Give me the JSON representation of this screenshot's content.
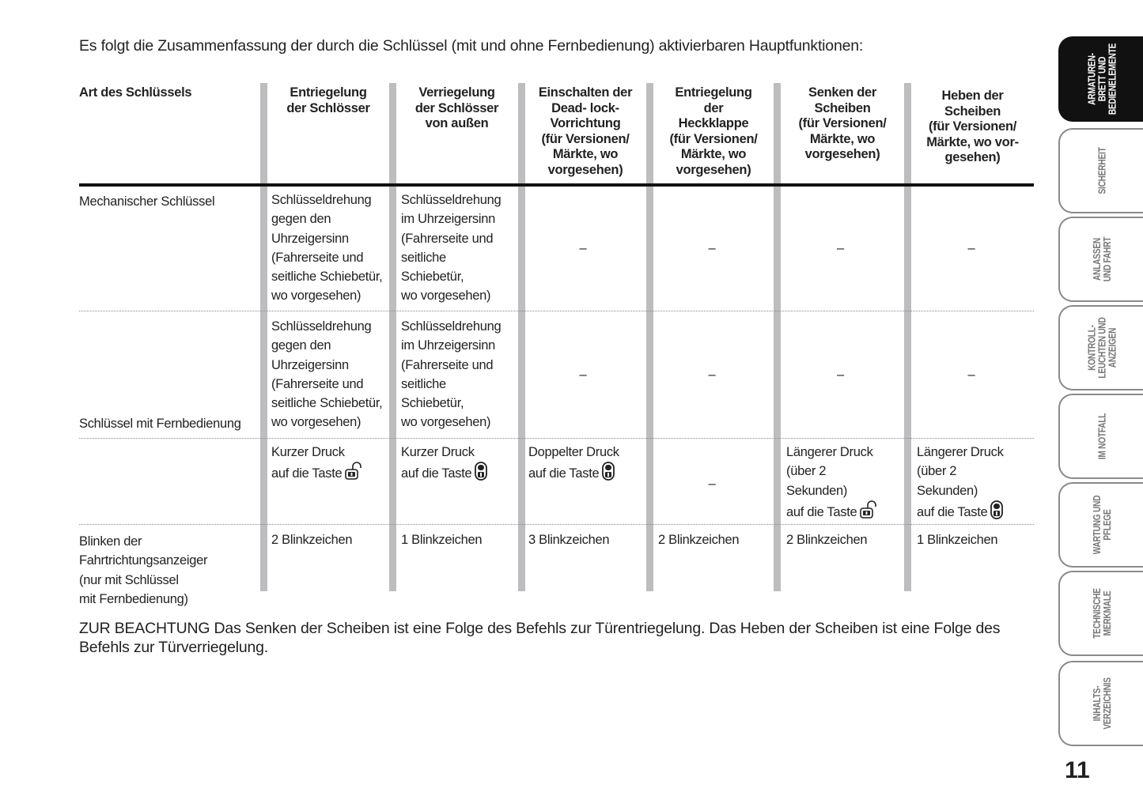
{
  "intro": "Es folgt die Zusammenfassung der durch die Schlüssel (mit und ohne Fernbedienung) aktivierbaren Hauptfunktionen:",
  "table": {
    "headers": [
      "Art des Schlüssels",
      "Entriegelung\nder Schlösser",
      "Verriegelung\nder Schlösser\nvon außen",
      "Einschalten der\nDead- lock-\nVorrichtung\n(für Versionen/\nMärkte, wo\nvorgesehen)",
      "Entriegelung\nder\nHeckklappe\n(für Versionen/\nMärkte, wo\nvorgesehen)",
      "Senken der\nScheiben\n(für Versionen/\nMärkte, wo\nvorgesehen)",
      "Heben der\nScheiben\n(für Versionen/\nMärkte, wo vor-\ngesehen)"
    ],
    "row_labels": [
      "Mechanischer Schlüssel",
      "Schlüssel mit Fernbedienung",
      "Blinken der\nFahrtrichtungsanzeiger\n(nur mit Schlüssel\nmit Fernbedienung)"
    ],
    "rows": [
      [
        {
          "text": "Schlüsseldrehung\ngegen den\nUhrzeigersinn\n(Fahrerseite und\nseitliche Schiebetür,\nwo vorgesehen)"
        },
        {
          "text": "Schlüsseldrehung\nim Uhrzeigersinn\n(Fahrerseite und\nseitliche\nSchiebetür,\nwo vorgesehen)"
        },
        {
          "text": "–",
          "dash": true
        },
        {
          "text": "–",
          "dash": true
        },
        {
          "text": "–",
          "dash": true
        },
        {
          "text": "–",
          "dash": true
        }
      ],
      [
        {
          "text": "Schlüsseldrehung\ngegen den\nUhrzeigersinn\n(Fahrerseite und\nseitliche Schiebetür,\nwo vorgesehen)"
        },
        {
          "text": "Schlüsseldrehung\nim Uhrzeigersinn\n(Fahrerseite und\nseitliche\nSchiebetür,\nwo vorgesehen)"
        },
        {
          "text": "–",
          "dash": true
        },
        {
          "text": "–",
          "dash": true
        },
        {
          "text": "–",
          "dash": true
        },
        {
          "text": "–",
          "dash": true
        }
      ],
      [
        {
          "text": "Kurzer Druck\nauf die Taste",
          "icon": "unlock-icon"
        },
        {
          "text": "Kurzer Druck\nauf die Taste",
          "icon": "lock-button-icon"
        },
        {
          "text": "Doppelter Druck\nauf die Taste",
          "icon": "lock-button-icon"
        },
        {
          "text": "–",
          "dash": true
        },
        {
          "text": "Längerer Druck\n(über 2\nSekunden)\nauf die Taste",
          "icon": "unlock-icon"
        },
        {
          "text": "Längerer Druck\n(über 2\nSekunden)\nauf die Taste",
          "icon": "lock-button-icon"
        }
      ],
      [
        {
          "text": "2 Blinkzeichen"
        },
        {
          "text": "1 Blinkzeichen"
        },
        {
          "text": "3 Blinkzeichen"
        },
        {
          "text": "2 Blinkzeichen"
        },
        {
          "text": "2 Blinkzeichen"
        },
        {
          "text": "1 Blinkzeichen"
        }
      ]
    ]
  },
  "note": "ZUR BEACHTUNG Das Senken der Scheiben ist eine Folge des Befehls zur Türentriegelung. Das Heben der Scheiben ist eine Folge des Befehls zur Türverriegelung.",
  "sidebar": {
    "tabs": [
      {
        "label": "ARMATUREN-\nBRETT UND\nBEDIENELEMENTE",
        "active": true
      },
      {
        "label": "SICHERHEIT"
      },
      {
        "label": "ANLASSEN\nUND FAHRT"
      },
      {
        "label": "KONTROLL-\nLEUCHTEN UND\nANZEIGEN"
      },
      {
        "label": "IM NOTFALL"
      },
      {
        "label": "WARTUNG UND\nPFLEGE"
      },
      {
        "label": "TECHNISCHE\nMERKMALE"
      },
      {
        "label": "INHALTS-\nVERZEICHNIS"
      }
    ]
  },
  "page_number": "11",
  "colors": {
    "column_bar": "#bdbdc0",
    "active_tab": "#111111",
    "tab_border": "#8a8a8a"
  }
}
